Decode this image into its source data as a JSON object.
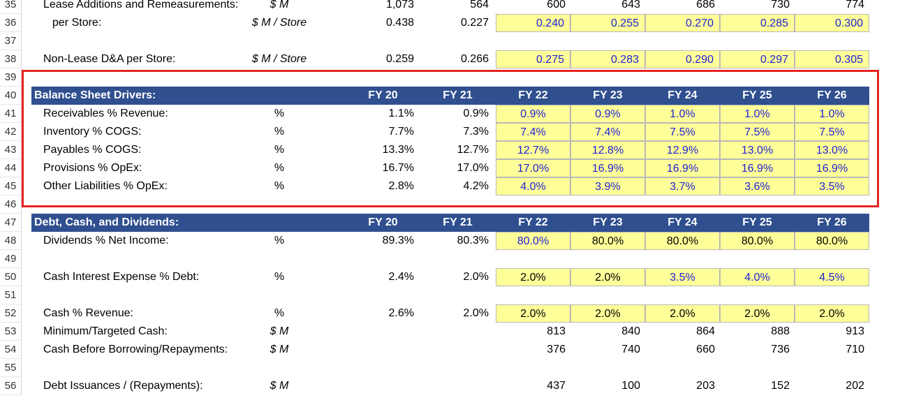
{
  "colors": {
    "header_bg": "#2f4f8f",
    "input_bg": "#ffff99",
    "input_text": "#1f1fd6",
    "highlight": "#e52521"
  },
  "rows": {
    "r35": {
      "num": "35",
      "label": "Lease Additions and Remeasurements:",
      "unit": "$ M",
      "v": [
        "1,073",
        "564",
        "600",
        "643",
        "686",
        "730",
        "774"
      ]
    },
    "r36": {
      "num": "36",
      "label": "per Store:",
      "unit": "$ M / Store",
      "v": [
        "0.438",
        "0.227",
        "0.240",
        "0.255",
        "0.270",
        "0.285",
        "0.300"
      ]
    },
    "r37": {
      "num": "37"
    },
    "r38": {
      "num": "38",
      "label": "Non-Lease D&A per Store:",
      "unit": "$ M / Store",
      "v": [
        "0.259",
        "0.266",
        "0.275",
        "0.283",
        "0.290",
        "0.297",
        "0.305"
      ]
    },
    "r39": {
      "num": "39"
    },
    "r40": {
      "num": "40",
      "title": "Balance Sheet Drivers:",
      "fy": [
        "FY 20",
        "FY 21",
        "FY 22",
        "FY 23",
        "FY 24",
        "FY 25",
        "FY 26"
      ]
    },
    "r41": {
      "num": "41",
      "label": "Receivables % Revenue:",
      "unit": "%",
      "v": [
        "1.1%",
        "0.9%",
        "0.9%",
        "0.9%",
        "1.0%",
        "1.0%",
        "1.0%"
      ]
    },
    "r42": {
      "num": "42",
      "label": "Inventory % COGS:",
      "unit": "%",
      "v": [
        "7.7%",
        "7.3%",
        "7.4%",
        "7.4%",
        "7.5%",
        "7.5%",
        "7.5%"
      ]
    },
    "r43": {
      "num": "43",
      "label": "Payables % COGS:",
      "unit": "%",
      "v": [
        "13.3%",
        "12.7%",
        "12.7%",
        "12.8%",
        "12.9%",
        "13.0%",
        "13.0%"
      ]
    },
    "r44": {
      "num": "44",
      "label": "Provisions % OpEx:",
      "unit": "%",
      "v": [
        "16.7%",
        "17.0%",
        "17.0%",
        "16.9%",
        "16.9%",
        "16.9%",
        "16.9%"
      ]
    },
    "r45": {
      "num": "45",
      "label": "Other Liabilities % OpEx:",
      "unit": "%",
      "v": [
        "2.8%",
        "4.2%",
        "4.0%",
        "3.9%",
        "3.7%",
        "3.6%",
        "3.5%"
      ]
    },
    "r46": {
      "num": "46"
    },
    "r47": {
      "num": "47",
      "title": "Debt, Cash, and Dividends:",
      "fy": [
        "FY 20",
        "FY 21",
        "FY 22",
        "FY 23",
        "FY 24",
        "FY 25",
        "FY 26"
      ]
    },
    "r48": {
      "num": "48",
      "label": "Dividends % Net Income:",
      "unit": "%",
      "v": [
        "89.3%",
        "80.3%",
        "80.0%",
        "80.0%",
        "80.0%",
        "80.0%",
        "80.0%"
      ]
    },
    "r49": {
      "num": "49"
    },
    "r50": {
      "num": "50",
      "label": "Cash Interest Expense % Debt:",
      "unit": "%",
      "v": [
        "2.4%",
        "2.0%",
        "2.0%",
        "2.0%",
        "3.5%",
        "4.0%",
        "4.5%"
      ]
    },
    "r51": {
      "num": "51"
    },
    "r52": {
      "num": "52",
      "label": "Cash % Revenue:",
      "unit": "%",
      "v": [
        "2.6%",
        "2.0%",
        "2.0%",
        "2.0%",
        "2.0%",
        "2.0%",
        "2.0%"
      ]
    },
    "r53": {
      "num": "53",
      "label": "Minimum/Targeted Cash:",
      "unit": "$ M",
      "v": [
        "",
        "",
        "813",
        "840",
        "864",
        "888",
        "913"
      ]
    },
    "r54": {
      "num": "54",
      "label": "Cash Before Borrowing/Repayments:",
      "unit": "$ M",
      "v": [
        "",
        "",
        "376",
        "740",
        "660",
        "736",
        "710"
      ]
    },
    "r55": {
      "num": "55"
    },
    "r56": {
      "num": "56",
      "label": "Debt Issuances / (Repayments):",
      "unit": "$ M",
      "v": [
        "",
        "",
        "437",
        "100",
        "203",
        "152",
        "202"
      ]
    }
  }
}
